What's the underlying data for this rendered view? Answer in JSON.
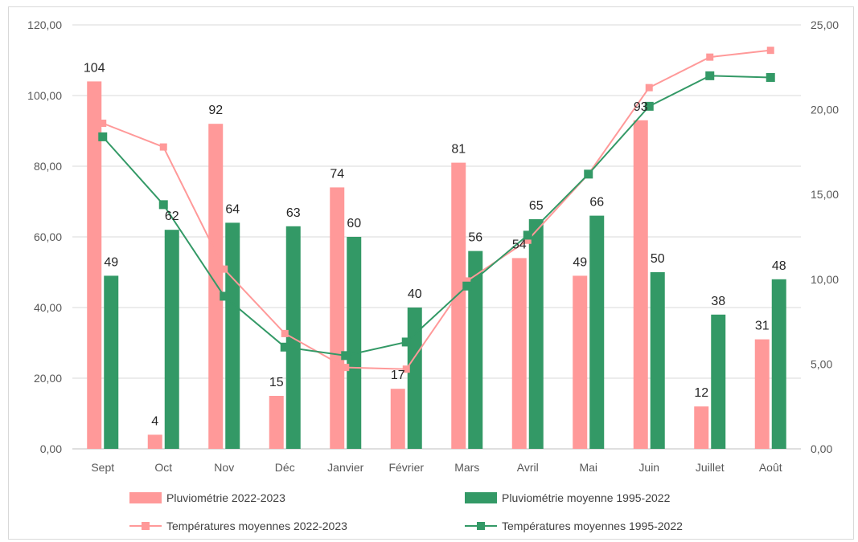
{
  "chart_data": {
    "type": "bar",
    "categories": [
      "Sept",
      "Oct",
      "Nov",
      "Déc",
      "Janvier",
      "Février",
      "Mars",
      "Avril",
      "Mai",
      "Juin",
      "Juillet",
      "Août"
    ],
    "ylim": [
      0,
      120
    ],
    "y2lim": [
      0,
      25
    ],
    "yticks": [
      "0,00",
      "20,00",
      "40,00",
      "60,00",
      "80,00",
      "100,00",
      "120,00"
    ],
    "y2ticks": [
      "0,00",
      "5,00",
      "10,00",
      "15,00",
      "20,00",
      "25,00"
    ],
    "grid": true,
    "legend_position": "bottom",
    "series": [
      {
        "name": "Pluviométrie 2022-2023",
        "type": "bar",
        "axis": "left",
        "color": "#ff9999",
        "values": [
          104,
          4,
          92,
          15,
          74,
          17,
          81,
          54,
          49,
          93,
          12,
          31
        ],
        "labels": [
          "104",
          "4",
          "92",
          "15",
          "74",
          "17",
          "81",
          "54",
          "49",
          "93",
          "12",
          "31"
        ]
      },
      {
        "name": "Pluviométrie moyenne 1995-2022",
        "type": "bar",
        "axis": "left",
        "color": "#339966",
        "values": [
          49,
          62,
          64,
          63,
          60,
          40,
          56,
          65,
          66,
          50,
          38,
          48
        ],
        "labels": [
          "49",
          "62",
          "64",
          "63",
          "60",
          "40",
          "56",
          "65",
          "66",
          "50",
          "38",
          "48"
        ]
      },
      {
        "name": "Températures moyennes 2022-2023",
        "type": "line",
        "axis": "right",
        "color": "#ff9999",
        "values": [
          19.2,
          17.8,
          10.6,
          6.8,
          4.8,
          4.7,
          9.9,
          12.3,
          16.2,
          21.3,
          23.1,
          23.5
        ]
      },
      {
        "name": "Températures moyennes 1995-2022",
        "type": "line",
        "axis": "right",
        "color": "#339966",
        "values": [
          18.4,
          14.4,
          9.0,
          6.0,
          5.5,
          6.3,
          9.6,
          12.6,
          16.2,
          20.2,
          22.0,
          21.9
        ]
      }
    ]
  }
}
